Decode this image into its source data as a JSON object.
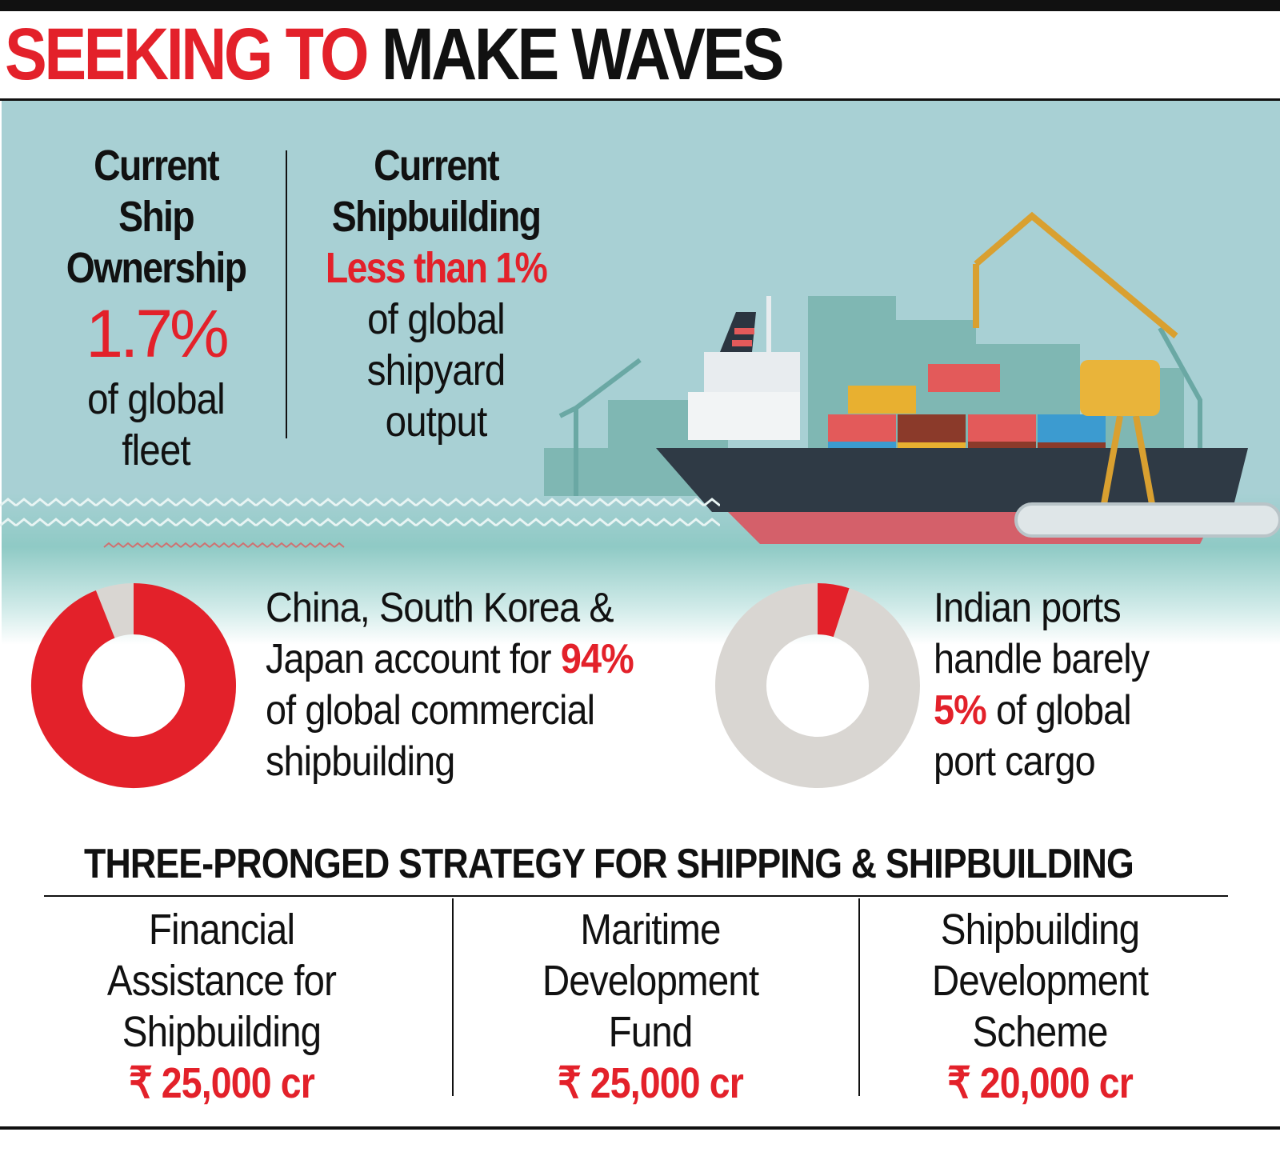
{
  "title": {
    "part1": "SEEKING TO",
    "part2": "MAKE WAVES"
  },
  "ownership": {
    "heading": [
      "Current",
      "Ship",
      "Ownership"
    ],
    "value": "1.7%",
    "desc": [
      "of global",
      "fleet"
    ]
  },
  "shipbuilding": {
    "heading": [
      "Current",
      "Shipbuilding"
    ],
    "value": "Less than 1%",
    "desc": [
      "of global",
      "shipyard",
      "output"
    ]
  },
  "donuts": [
    {
      "percent": 94,
      "text_before": [
        "China, South Korea &",
        "Japan account for "
      ],
      "highlight": "94%",
      "text_after": [
        "of global commercial",
        "shipbuilding"
      ]
    },
    {
      "percent": 5,
      "text_before": [
        "Indian ports",
        "handle barely"
      ],
      "highlight": "5%",
      "text_after": [
        " of global",
        "port cargo"
      ]
    }
  ],
  "colors": {
    "accent": "#e3212a",
    "track": "#d9d6d2",
    "panel": "#a8d0d4"
  },
  "strategy": {
    "heading": "THREE-PRONGED STRATEGY FOR SHIPPING & SHIPBUILDING",
    "items": [
      {
        "label": [
          "Financial",
          "Assistance for",
          "Shipbuilding"
        ],
        "amount": "₹ 25,000 cr"
      },
      {
        "label": [
          "Maritime",
          "Development",
          "Fund"
        ],
        "amount": "₹ 25,000 cr"
      },
      {
        "label": [
          "Shipbuilding",
          "Development",
          "Scheme"
        ],
        "amount": "₹ 20,000 cr"
      }
    ]
  }
}
